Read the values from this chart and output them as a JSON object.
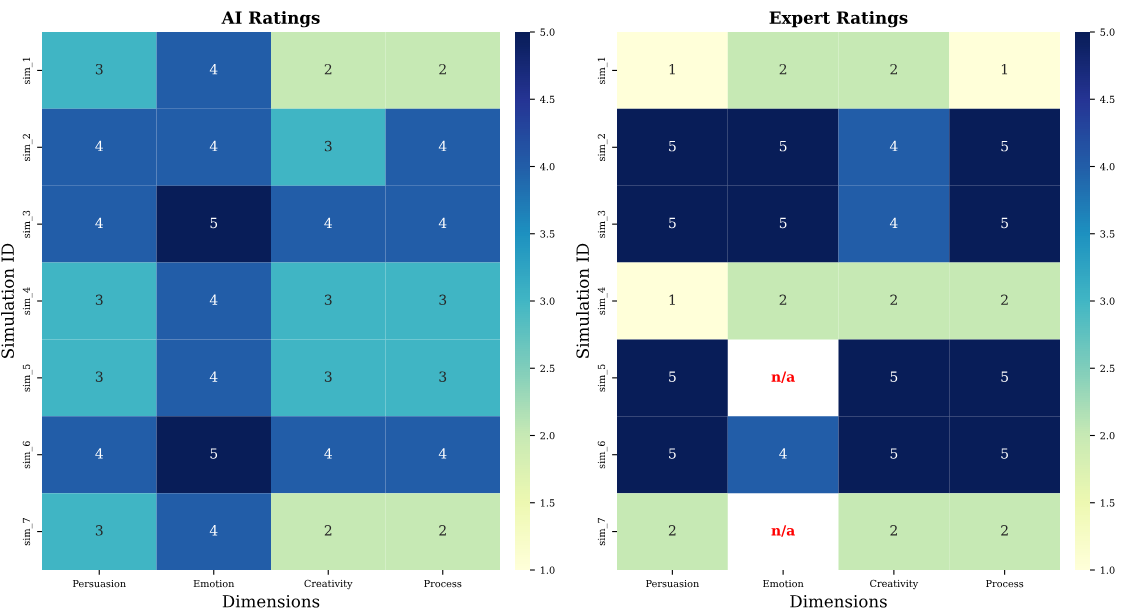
{
  "chart_data": [
    {
      "type": "heatmap",
      "title": "AI Ratings",
      "xlabel": "Dimensions",
      "ylabel": "Simulation ID",
      "categories": [
        "Persuasion",
        "Emotion",
        "Creativity",
        "Process"
      ],
      "y_categories": [
        "sim_1",
        "sim_2",
        "sim_3",
        "sim_4",
        "sim_5",
        "sim_6",
        "sim_7"
      ],
      "cells": [
        [
          3,
          4,
          2,
          2
        ],
        [
          4,
          4,
          3,
          4
        ],
        [
          4,
          5,
          4,
          4
        ],
        [
          3,
          4,
          3,
          3
        ],
        [
          3,
          4,
          3,
          3
        ],
        [
          4,
          5,
          4,
          4
        ],
        [
          3,
          4,
          2,
          2
        ]
      ],
      "clim": [
        1,
        5
      ],
      "cticks": [
        {
          "value": 1,
          "label": "1.0"
        },
        {
          "value": 1.5,
          "label": "1.5"
        },
        {
          "value": 2,
          "label": "2.0"
        },
        {
          "value": 2.5,
          "label": "2.5"
        },
        {
          "value": 3,
          "label": "3.0"
        },
        {
          "value": 3.5,
          "label": "3.5"
        },
        {
          "value": 4,
          "label": "4.0"
        },
        {
          "value": 4.5,
          "label": "4.5"
        },
        {
          "value": 5,
          "label": "5.0"
        }
      ],
      "data_labels": true
    },
    {
      "type": "heatmap",
      "title": "Expert Ratings",
      "xlabel": "Dimensions",
      "ylabel": "Simulation ID",
      "categories": [
        "Persuasion",
        "Emotion",
        "Creativity",
        "Process"
      ],
      "y_categories": [
        "sim_1",
        "sim_2",
        "sim_3",
        "sim_4",
        "sim_5",
        "sim_6",
        "sim_7"
      ],
      "cells": [
        [
          1,
          2,
          2,
          1
        ],
        [
          5,
          5,
          4,
          5
        ],
        [
          5,
          5,
          4,
          5
        ],
        [
          1,
          2,
          2,
          2
        ],
        [
          5,
          null,
          5,
          5
        ],
        [
          5,
          4,
          5,
          5
        ],
        [
          2,
          null,
          2,
          2
        ]
      ],
      "cell_labels": [
        [
          "1",
          "2",
          "2",
          "1"
        ],
        [
          "5",
          "5",
          "4",
          "5"
        ],
        [
          "5",
          "5",
          "4",
          "5"
        ],
        [
          "1",
          "2",
          "2",
          "2"
        ],
        [
          "5",
          "n/a",
          "5",
          "5"
        ],
        [
          "5",
          "4",
          "5",
          "5"
        ],
        [
          "2",
          "n/a",
          "2",
          "2"
        ]
      ],
      "clim": [
        1,
        5
      ],
      "cticks": [
        {
          "value": 1,
          "label": "1.0"
        },
        {
          "value": 1.5,
          "label": "1.5"
        },
        {
          "value": 2,
          "label": "2.0"
        },
        {
          "value": 2.5,
          "label": "2.5"
        },
        {
          "value": 3,
          "label": "3.0"
        },
        {
          "value": 3.5,
          "label": "3.5"
        },
        {
          "value": 4,
          "label": "4.0"
        },
        {
          "value": 4.5,
          "label": "4.5"
        },
        {
          "value": 5,
          "label": "5.0"
        }
      ],
      "data_labels": true
    }
  ]
}
